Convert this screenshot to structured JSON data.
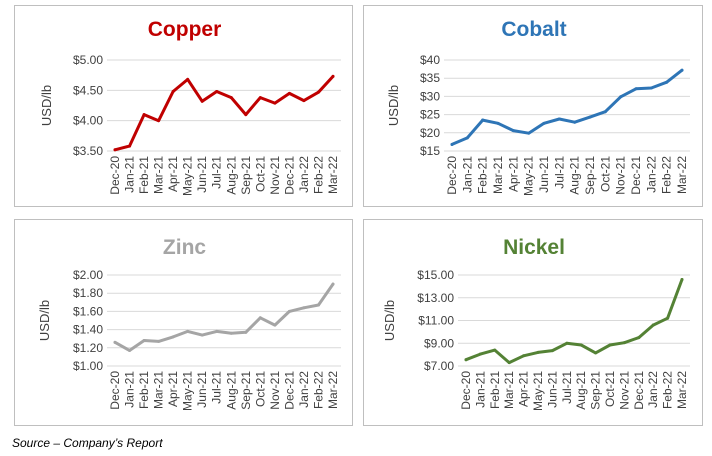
{
  "source_note": "Source – Company’s Report",
  "chart_data": [
    {
      "type": "line",
      "title": "Copper",
      "color": "#c00000",
      "ylabel": "USD/lb",
      "categories": [
        "Dec-20",
        "Jan-21",
        "Feb-21",
        "Mar-21",
        "Apr-21",
        "May-21",
        "Jun-21",
        "Jul-21",
        "Aug-21",
        "Sep-21",
        "Oct-21",
        "Nov-21",
        "Dec-21",
        "Jan-22",
        "Feb-22",
        "Mar-22"
      ],
      "values": [
        3.52,
        3.58,
        4.1,
        4.0,
        4.48,
        4.68,
        4.32,
        4.48,
        4.38,
        4.1,
        4.38,
        4.29,
        4.45,
        4.33,
        4.47,
        4.73
      ],
      "yticks": [
        3.5,
        4.0,
        4.5,
        5.0
      ],
      "ytick_labels": [
        "$3.50",
        "$4.00",
        "$4.50",
        "$5.00"
      ],
      "ylim": [
        3.5,
        5.0
      ],
      "grid": true
    },
    {
      "type": "line",
      "title": "Cobalt",
      "color": "#2e75b6",
      "ylabel": "USD/lb",
      "categories": [
        "Dec-20",
        "Jan-21",
        "Feb-21",
        "Mar-21",
        "Apr-21",
        "May-21",
        "Jun-21",
        "Jul-21",
        "Aug-21",
        "Sep-21",
        "Oct-21",
        "Nov-21",
        "Dec-21",
        "Jan-22",
        "Feb-22",
        "Mar-22"
      ],
      "values": [
        16.8,
        18.6,
        23.5,
        22.6,
        20.6,
        19.9,
        22.6,
        23.8,
        22.9,
        24.3,
        25.8,
        29.9,
        32.1,
        32.3,
        33.9,
        37.2
      ],
      "yticks": [
        15,
        20,
        25,
        30,
        35,
        40
      ],
      "ytick_labels": [
        "$15",
        "$20",
        "$25",
        "$30",
        "$35",
        "$40"
      ],
      "ylim": [
        15,
        40
      ],
      "grid": true
    },
    {
      "type": "line",
      "title": "Zinc",
      "color": "#a5a5a5",
      "ylabel": "USD/lb",
      "categories": [
        "Dec-20",
        "Jan-21",
        "Feb-21",
        "Mar-21",
        "Apr-21",
        "May-21",
        "Jun-21",
        "Jul-21",
        "Aug-21",
        "Sep-21",
        "Oct-21",
        "Nov-21",
        "Dec-21",
        "Jan-22",
        "Feb-22",
        "Mar-22"
      ],
      "values": [
        1.26,
        1.17,
        1.28,
        1.27,
        1.32,
        1.38,
        1.34,
        1.38,
        1.36,
        1.37,
        1.53,
        1.45,
        1.6,
        1.64,
        1.67,
        1.9
      ],
      "yticks": [
        1.0,
        1.2,
        1.4,
        1.6,
        1.8,
        2.0
      ],
      "ytick_labels": [
        "$1.00",
        "$1.20",
        "$1.40",
        "$1.60",
        "$1.80",
        "$2.00"
      ],
      "ylim": [
        1.0,
        2.0
      ],
      "grid": true
    },
    {
      "type": "line",
      "title": "Nickel",
      "color": "#548235",
      "ylabel": "USD/lb",
      "categories": [
        "Dec-20",
        "Jan-21",
        "Feb-21",
        "Mar-21",
        "Apr-21",
        "May-21",
        "Jun-21",
        "Jul-21",
        "Aug-21",
        "Sep-21",
        "Oct-21",
        "Nov-21",
        "Dec-21",
        "Jan-22",
        "Feb-22",
        "Mar-22"
      ],
      "values": [
        7.55,
        8.05,
        8.4,
        7.3,
        7.9,
        8.2,
        8.35,
        9.0,
        8.85,
        8.15,
        8.85,
        9.05,
        9.5,
        10.6,
        11.2,
        14.6
      ],
      "yticks": [
        7,
        9,
        11,
        13,
        15
      ],
      "ytick_labels": [
        "$7.00",
        "$9.00",
        "$11.00",
        "$13.00",
        "$15.00"
      ],
      "ylim": [
        7,
        15
      ],
      "grid": true
    }
  ]
}
